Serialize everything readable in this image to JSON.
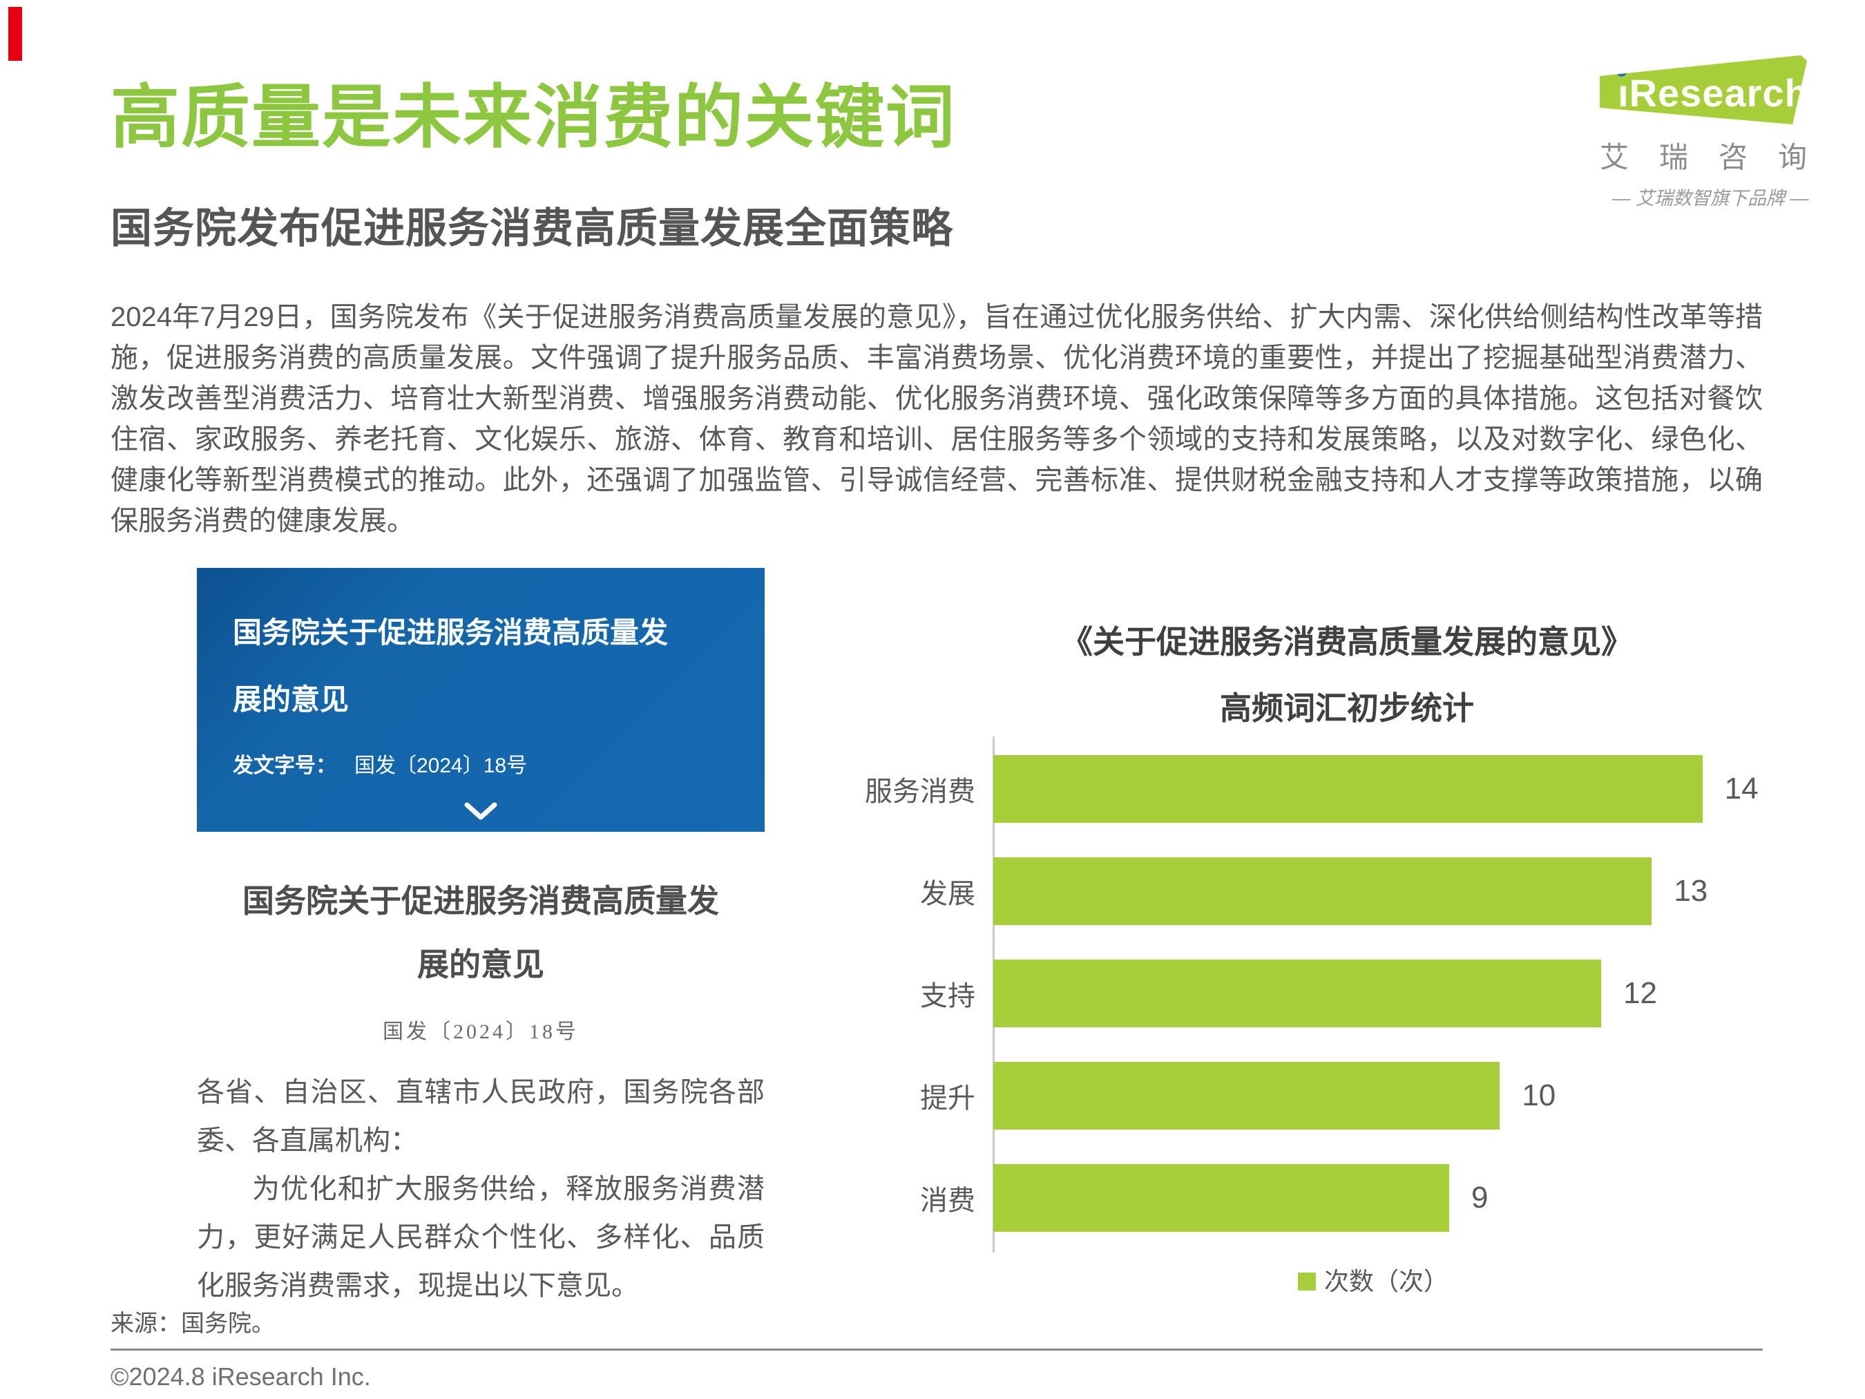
{
  "page": {
    "title": "高质量是未来消费的关键词",
    "subtitle": "国务院发布促进服务消费高质量发展全面策略",
    "body": "2024年7月29日，国务院发布《关于促进服务消费高质量发展的意见》，旨在通过优化服务供给、扩大内需、深化供给侧结构性改革等措施，促进服务消费的高质量发展。文件强调了提升服务品质、丰富消费场景、优化消费环境的重要性，并提出了挖掘基础型消费潜力、激发改善型消费活力、培育壮大新型消费、增强服务消费动能、优化服务消费环境、强化政策保障等多方面的具体措施。这包括对餐饮住宿、家政服务、养老托育、文化娱乐、旅游、体育、教育和培训、居住服务等多个领域的支持和发展策略，以及对数字化、绿色化、健康化等新型消费模式的推动。此外，还强调了加强监管、引导诚信经营、完善标准、提供财税金融支持和人才支撑等政策措施，以确保服务消费的健康发展。",
    "source": "来源：国务院。",
    "copyright": "©2024.8 iResearch Inc."
  },
  "logo": {
    "name": "iResearch",
    "name_rest": "Research",
    "cn_name": "艾瑞咨询",
    "tagline": "— 艾瑞数智旗下品牌 —"
  },
  "card": {
    "title": "国务院关于促进服务消费高质量发展的意见",
    "doc_no_label": "发文字号：",
    "doc_no": "国发〔2024〕18号"
  },
  "document": {
    "title": "国务院关于促进服务消费高质量发展的意见",
    "doc_no": "国发〔2024〕18号",
    "para1": "各省、自治区、直辖市人民政府，国务院各部委、各直属机构：",
    "para2": "为优化和扩大服务供给，释放服务消费潜力，更好满足人民群众个性化、多样化、品质化服务消费需求，现提出以下意见。"
  },
  "chart_data": {
    "type": "bar",
    "orientation": "horizontal",
    "title": "《关于促进服务消费高质量发展的意见》高频词汇初步统计",
    "title_line1": "《关于促进服务消费高质量发展的意见》",
    "title_line2": "高频词汇初步统计",
    "categories": [
      "服务消费",
      "发展",
      "支持",
      "提升",
      "消费"
    ],
    "values": [
      14,
      13,
      12,
      10,
      9
    ],
    "xlabel": "",
    "ylabel": "",
    "xlim": [
      0,
      15
    ],
    "grid": false,
    "legend": "次数（次）",
    "legend_position": "bottom",
    "bar_color": "#a6ce39"
  },
  "colors": {
    "brand_green_title": "#8dc63f",
    "brand_green_bar": "#a6ce39",
    "logo_dot_blue": "#2f6eb5",
    "card_blue": "#1467ad",
    "corner_red": "#e60012"
  }
}
